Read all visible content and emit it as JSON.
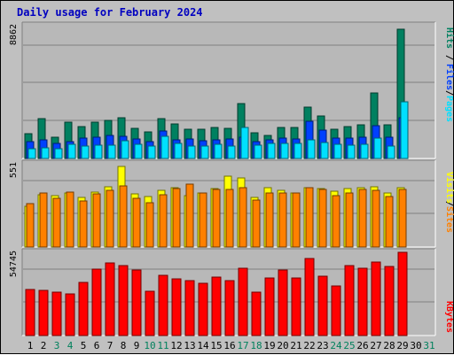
{
  "title": "Daily usage for February 2024",
  "colors": {
    "background": "#c0c0c0",
    "panel": "#b8b8b8",
    "hits": "#008060",
    "files": "#0040ff",
    "pages": "#00e0ff",
    "visits": "#ffff00",
    "sites": "#ff8000",
    "kbytes": "#ff0000",
    "title": "#0000c0",
    "weekend_label": "#00805c",
    "day_label": "#000000"
  },
  "chart_data": [
    {
      "type": "bar",
      "panel": "hits-files-pages",
      "ytop_label": "8862",
      "ylim": [
        0,
        8862
      ],
      "grid": true,
      "legend": [
        "Pages",
        "Files",
        "Hits"
      ],
      "x": [
        1,
        2,
        3,
        4,
        5,
        6,
        7,
        8,
        9,
        10,
        11,
        12,
        13,
        14,
        15,
        16,
        17,
        18,
        19,
        20,
        21,
        22,
        23,
        24,
        25,
        26,
        27,
        28,
        29
      ],
      "series": [
        {
          "name": "Hits",
          "color": "#008060",
          "values": [
            1650,
            2650,
            1400,
            2400,
            2150,
            2400,
            2550,
            2700,
            2000,
            1750,
            2650,
            2300,
            1950,
            1950,
            2050,
            2000,
            3650,
            1700,
            1550,
            2050,
            2050,
            3450,
            2850,
            1950,
            2100,
            2250,
            4350,
            2250,
            8650
          ]
        },
        {
          "name": "Files",
          "color": "#0040ff",
          "values": [
            1100,
            1250,
            1000,
            1100,
            1350,
            1400,
            1550,
            1450,
            1300,
            1150,
            1850,
            1250,
            1300,
            1200,
            1250,
            1300,
            1400,
            1150,
            1250,
            1350,
            1300,
            2500,
            1900,
            1350,
            1350,
            1400,
            2200,
            1400,
            2700
          ]
        },
        {
          "name": "Pages",
          "color": "#00e0ff",
          "values": [
            650,
            700,
            650,
            950,
            800,
            900,
            900,
            1200,
            950,
            850,
            1450,
            1000,
            850,
            850,
            950,
            850,
            2050,
            900,
            1000,
            1000,
            1000,
            1250,
            1050,
            950,
            900,
            950,
            1350,
            800,
            3800
          ]
        }
      ]
    },
    {
      "type": "bar",
      "panel": "visits-sites",
      "ytop_label": "551",
      "ylim": [
        0,
        551
      ],
      "grid": true,
      "legend": [
        "Sites",
        "Visits"
      ],
      "x": [
        1,
        2,
        3,
        4,
        5,
        6,
        7,
        8,
        9,
        10,
        11,
        12,
        13,
        14,
        15,
        16,
        17,
        18,
        19,
        20,
        21,
        22,
        23,
        24,
        25,
        26,
        27,
        28,
        29
      ],
      "series": [
        {
          "name": "Visits",
          "color": "#ffff00",
          "values": [
            270,
            345,
            340,
            355,
            330,
            365,
            400,
            535,
            350,
            335,
            375,
            395,
            340,
            360,
            385,
            470,
            455,
            330,
            395,
            375,
            360,
            390,
            385,
            370,
            385,
            390,
            400,
            355,
            395
          ]
        },
        {
          "name": "Sites",
          "color": "#ff8000",
          "values": [
            285,
            360,
            320,
            365,
            305,
            350,
            375,
            405,
            320,
            295,
            345,
            385,
            415,
            360,
            380,
            380,
            395,
            310,
            360,
            360,
            355,
            390,
            380,
            340,
            355,
            380,
            375,
            335,
            380
          ]
        }
      ]
    },
    {
      "type": "bar",
      "panel": "kbytes",
      "ytop_label": "54745",
      "ylim": [
        0,
        54745
      ],
      "grid": true,
      "legend": [
        "KBytes"
      ],
      "x": [
        1,
        2,
        3,
        4,
        5,
        6,
        7,
        8,
        9,
        10,
        11,
        12,
        13,
        14,
        15,
        16,
        17,
        18,
        19,
        20,
        21,
        22,
        23,
        24,
        25,
        26,
        27,
        28,
        29
      ],
      "series": [
        {
          "name": "KBytes",
          "color": "#ff0000",
          "values": [
            30300,
            29900,
            28300,
            27400,
            34900,
            43800,
            48000,
            46300,
            43000,
            28900,
            39500,
            37200,
            36000,
            34600,
            38500,
            36100,
            44300,
            28600,
            38000,
            43000,
            37800,
            50700,
            38800,
            32800,
            45900,
            44300,
            48300,
            45600,
            54745
          ]
        }
      ]
    }
  ],
  "days": [
    {
      "label": "1",
      "weekend": false
    },
    {
      "label": "2",
      "weekend": false
    },
    {
      "label": "3",
      "weekend": true
    },
    {
      "label": "4",
      "weekend": true
    },
    {
      "label": "5",
      "weekend": false
    },
    {
      "label": "6",
      "weekend": false
    },
    {
      "label": "7",
      "weekend": false
    },
    {
      "label": "8",
      "weekend": false
    },
    {
      "label": "9",
      "weekend": false
    },
    {
      "label": "10",
      "weekend": true
    },
    {
      "label": "11",
      "weekend": true
    },
    {
      "label": "12",
      "weekend": false
    },
    {
      "label": "13",
      "weekend": false
    },
    {
      "label": "14",
      "weekend": false
    },
    {
      "label": "15",
      "weekend": false
    },
    {
      "label": "16",
      "weekend": false
    },
    {
      "label": "17",
      "weekend": true
    },
    {
      "label": "18",
      "weekend": true
    },
    {
      "label": "19",
      "weekend": false
    },
    {
      "label": "20",
      "weekend": false
    },
    {
      "label": "21",
      "weekend": false
    },
    {
      "label": "22",
      "weekend": false
    },
    {
      "label": "23",
      "weekend": false
    },
    {
      "label": "24",
      "weekend": true
    },
    {
      "label": "25",
      "weekend": true
    },
    {
      "label": "26",
      "weekend": false
    },
    {
      "label": "27",
      "weekend": false
    },
    {
      "label": "28",
      "weekend": false
    },
    {
      "label": "29",
      "weekend": false
    },
    {
      "label": "30",
      "weekend": false
    },
    {
      "label": "31",
      "weekend": true
    }
  ]
}
